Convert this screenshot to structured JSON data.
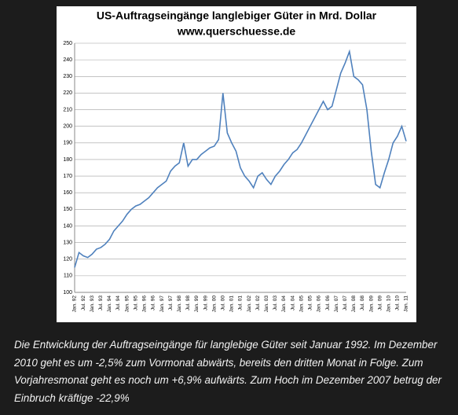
{
  "chart_data": {
    "type": "line",
    "title": "US-Auftragseingänge  langlebiger Güter in Mrd. Dollar",
    "subtitle": "www.querschuesse.de",
    "categories": [
      "Jan. 92",
      null,
      "Jul. 92",
      null,
      "Jan. 93",
      null,
      "Jul. 93",
      null,
      "Jan. 94",
      null,
      "Jul. 94",
      null,
      "Jan. 95",
      null,
      "Jul. 95",
      null,
      "Jan. 96",
      null,
      "Jul. 96",
      null,
      "Jan. 97",
      null,
      "Jul. 97",
      null,
      "Jan. 98",
      null,
      "Jul. 98",
      null,
      "Jan. 99",
      null,
      "Jul. 99",
      null,
      "Jan. 00",
      null,
      "Jul. 00",
      null,
      "Jan. 01",
      null,
      "Jul. 01",
      null,
      "Jan. 02",
      null,
      "Jul. 02",
      null,
      "Jan. 03",
      null,
      "Jul. 03",
      null,
      "Jan. 04",
      null,
      "Jul. 04",
      null,
      "Jan. 05",
      null,
      "Jul. 05",
      null,
      "Jan. 06",
      null,
      "Jul. 06",
      null,
      "Jan. 07",
      null,
      "Jul. 07",
      null,
      "Jan. 08",
      null,
      "Jul. 08",
      null,
      "Jan. 09",
      null,
      "Jul. 09",
      null,
      "Jan. 10",
      null,
      "Jul. 10",
      null,
      "Jan. 11"
    ],
    "series": [
      {
        "color": "#4f81bd",
        "values": [
          115,
          124,
          122,
          121,
          123,
          126,
          127,
          129,
          132,
          137,
          140,
          143,
          147,
          150,
          152,
          153,
          155,
          157,
          160,
          163,
          165,
          167,
          173,
          176,
          178,
          190,
          176,
          180,
          180,
          183,
          185,
          187,
          188,
          192,
          220,
          196,
          190,
          185,
          175,
          170,
          167,
          163,
          170,
          172,
          168,
          165,
          170,
          173,
          177,
          180,
          184,
          186,
          190,
          195,
          200,
          205,
          210,
          215,
          210,
          212,
          222,
          232,
          238,
          245,
          230,
          228,
          225,
          210,
          185,
          165,
          163,
          172,
          180,
          190,
          194,
          200,
          191
        ]
      }
    ],
    "ylim": [
      100,
      250
    ],
    "yticks": [
      100,
      110,
      120,
      130,
      140,
      150,
      160,
      170,
      180,
      190,
      200,
      210,
      220,
      230,
      240,
      250
    ],
    "grid": true
  },
  "caption": "Die Entwicklung der Auftragseingänge für langlebige Güter seit Januar 1992. Im Dezember 2010 geht es um -2,5% zum Vormonat abwärts, bereits den dritten Monat in Folge. Zum Vorjahresmonat geht es noch um +6,9% aufwärts. Zum Hoch im Dezember 2007 betrug der Einbruch kräftige -22,9%"
}
